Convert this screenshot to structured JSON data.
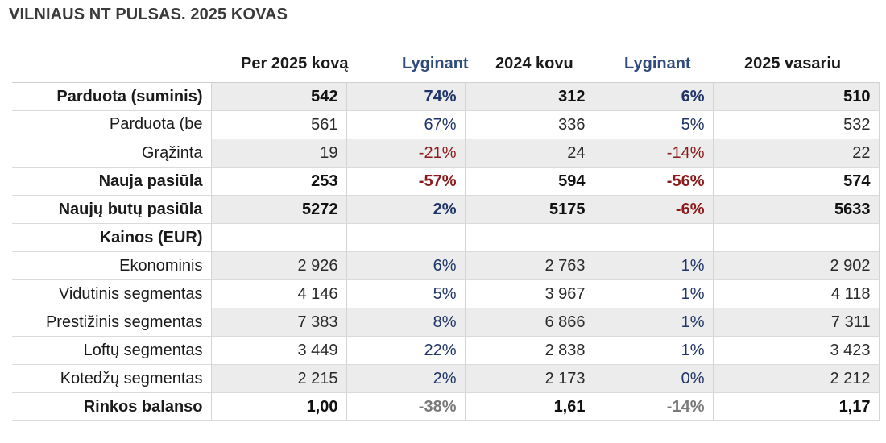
{
  "title": "VILNIAUS NT PULSAS. 2025 KOVAS",
  "headers": [
    "Per 2025 kovą",
    "Lyginant",
    "2024 kovu",
    "Lyginant",
    "2025 vasariu"
  ],
  "rows": [
    {
      "label": "Parduota (suminis)",
      "v": [
        "542",
        "74%",
        "312",
        "6%",
        "510"
      ],
      "c": [
        "",
        "pos",
        "",
        "pos",
        ""
      ],
      "bold": true,
      "shade": true
    },
    {
      "label": "Parduota (be",
      "v": [
        "561",
        "67%",
        "336",
        "5%",
        "532"
      ],
      "c": [
        "",
        "pos",
        "",
        "pos",
        ""
      ],
      "bold": false,
      "shade": false,
      "cut": true
    },
    {
      "label": "Grąžinta",
      "v": [
        "19",
        "-21%",
        "24",
        "-14%",
        "22"
      ],
      "c": [
        "",
        "neg",
        "",
        "neg",
        ""
      ],
      "bold": false,
      "shade": true
    },
    {
      "label": "Nauja pasiūla",
      "v": [
        "253",
        "-57%",
        "594",
        "-56%",
        "574"
      ],
      "c": [
        "",
        "neg",
        "",
        "neg",
        ""
      ],
      "bold": true,
      "shade": false
    },
    {
      "label": "Naujų butų pasiūla",
      "v": [
        "5272",
        "2%",
        "5175",
        "-6%",
        "5633"
      ],
      "c": [
        "",
        "pos",
        "",
        "neg",
        ""
      ],
      "bold": true,
      "shade": true
    },
    {
      "label": "Kainos (EUR)",
      "v": [
        "",
        "",
        "",
        "",
        ""
      ],
      "c": [
        "",
        "",
        "",
        "",
        ""
      ],
      "bold": true,
      "shade": false
    },
    {
      "label": "Ekonominis",
      "v": [
        "2 926",
        "6%",
        "2 763",
        "1%",
        "2 902"
      ],
      "c": [
        "",
        "pos",
        "",
        "pos",
        ""
      ],
      "bold": false,
      "shade": true
    },
    {
      "label": "Vidutinis segmentas",
      "v": [
        "4 146",
        "5%",
        "3 967",
        "1%",
        "4 118"
      ],
      "c": [
        "",
        "pos",
        "",
        "pos",
        ""
      ],
      "bold": false,
      "shade": false
    },
    {
      "label": "Prestižinis segmentas",
      "v": [
        "7 383",
        "8%",
        "6 866",
        "1%",
        "7 311"
      ],
      "c": [
        "",
        "pos",
        "",
        "pos",
        ""
      ],
      "bold": false,
      "shade": true
    },
    {
      "label": "Loftų segmentas",
      "v": [
        "3 449",
        "22%",
        "2 838",
        "1%",
        "3 423"
      ],
      "c": [
        "",
        "pos",
        "",
        "pos",
        ""
      ],
      "bold": false,
      "shade": false
    },
    {
      "label": "Kotedžų segmentas",
      "v": [
        "2 215",
        "2%",
        "2 173",
        "0%",
        "2 212"
      ],
      "c": [
        "",
        "pos",
        "",
        "pos",
        ""
      ],
      "bold": false,
      "shade": true
    },
    {
      "label": "Rinkos balanso",
      "v": [
        "1,00",
        "-38%",
        "1,61",
        "-14%",
        "1,17"
      ],
      "c": [
        "",
        "gry",
        "",
        "gry",
        ""
      ],
      "bold": true,
      "shade": false
    }
  ]
}
